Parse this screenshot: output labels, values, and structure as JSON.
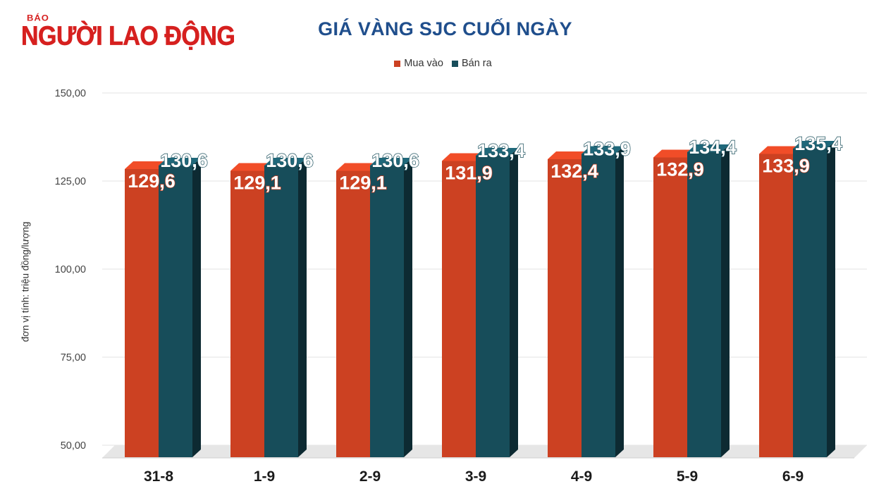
{
  "logo": {
    "small": "BÁO",
    "big": "NGƯỜI LAO ĐỘNG",
    "color": "#d6201f"
  },
  "chart_data": {
    "type": "bar",
    "title": "GIÁ VÀNG SJC CUỐI NGÀY",
    "ylabel": "đơn vị tính: triệu đồng/lượng",
    "xlabel": "",
    "ylim": [
      50,
      150
    ],
    "yticks": [
      "50,00",
      "75,00",
      "100,00",
      "125,00",
      "150,00"
    ],
    "ytick_values": [
      50,
      75,
      100,
      125,
      150
    ],
    "grid": true,
    "legend_position": "top-center",
    "categories": [
      "31-8",
      "1-9",
      "2-9",
      "3-9",
      "4-9",
      "5-9",
      "6-9"
    ],
    "series": [
      {
        "name": "Mua vào",
        "color": "#cc4122",
        "values": [
          129.6,
          129.1,
          129.1,
          131.9,
          132.4,
          132.9,
          133.9
        ],
        "labels": [
          "129,6",
          "129,1",
          "129,1",
          "131,9",
          "132,4",
          "132,9",
          "133,9"
        ]
      },
      {
        "name": "Bán ra",
        "color": "#174d5a",
        "values": [
          130.6,
          130.6,
          130.6,
          133.4,
          133.9,
          134.4,
          135.4
        ],
        "labels": [
          "130,6",
          "130,6",
          "130,6",
          "133,4",
          "133,9",
          "134,4",
          "135,4"
        ]
      }
    ]
  }
}
